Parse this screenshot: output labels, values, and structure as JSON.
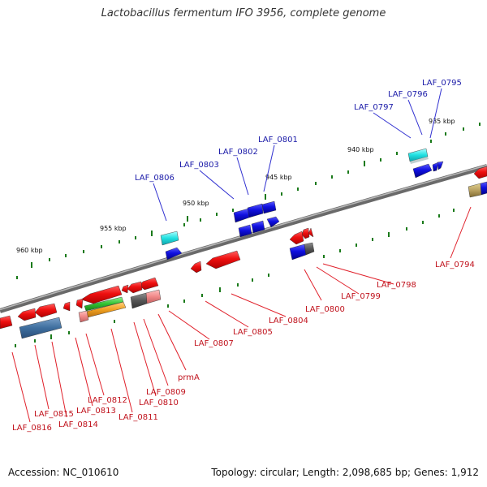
{
  "title": "Lactobacillus fermentum IFO 3956, complete genome",
  "footer": {
    "accession": "Accession: NC_010610",
    "summary": "Topology: circular; Length: 2,098,685 bp; Genes: 1,912"
  },
  "ticks": [
    "935 kbp",
    "940 kbp",
    "945 kbp",
    "950 kbp",
    "955 kbp",
    "960 kbp"
  ],
  "labels_top": [
    "LAF_0795",
    "LAF_0796",
    "LAF_0797",
    "LAF_0801",
    "LAF_0802",
    "LAF_0803",
    "LAF_0806"
  ],
  "labels_bottom": [
    "LAF_0794",
    "LAF_0798",
    "LAF_0799",
    "LAF_0800",
    "LAF_0804",
    "LAF_0805",
    "LAF_0807",
    "prmA",
    "LAF_0809",
    "LAF_0810",
    "LAF_0811",
    "LAF_0812",
    "LAF_0813",
    "LAF_0814",
    "LAF_0815",
    "LAF_0816"
  ],
  "colors": {
    "backbone": "#808080",
    "forward_strand": "#1010e0",
    "reverse_strand": "#ee1010",
    "tick_marks": "#1a7a1a",
    "top_label": "#1a1aa8",
    "bottom_label": "#c0121c"
  }
}
